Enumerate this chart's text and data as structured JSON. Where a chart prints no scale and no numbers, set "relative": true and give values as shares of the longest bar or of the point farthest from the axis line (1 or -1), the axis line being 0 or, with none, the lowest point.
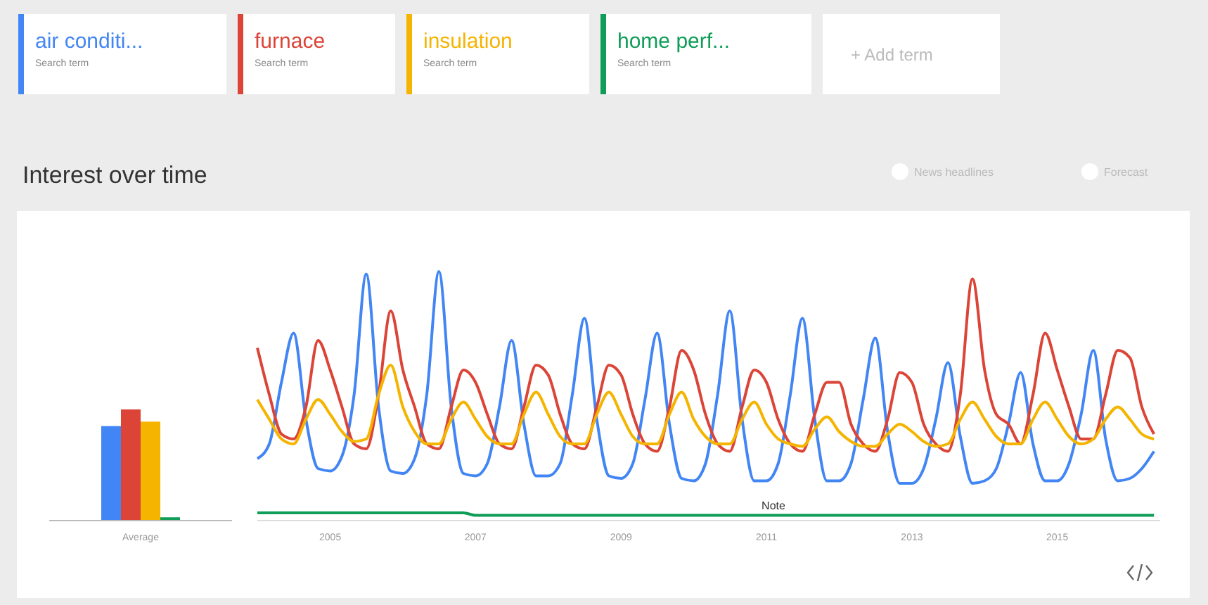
{
  "chart_data": [
    {
      "type": "bar",
      "title": "Interest over time",
      "categories": [
        "Average"
      ],
      "relative": true,
      "series": [
        {
          "color": "#4285f4",
          "values": [
            0.85
          ]
        },
        {
          "color": "#db4437",
          "values": [
            1
          ]
        },
        {
          "color": "#f4b400",
          "values": [
            0.89
          ]
        },
        {
          "color": "#0f9d58",
          "values": [
            0.03
          ]
        }
      ]
    },
    {
      "type": "line",
      "relative": true,
      "legend": "top",
      "x": [
        "2004-01",
        "2004-03",
        "2004-05",
        "2004-07",
        "2004-09",
        "2004-11",
        "2005-01",
        "2005-03",
        "2005-05",
        "2005-07",
        "2005-09",
        "2005-11",
        "2006-01",
        "2006-03",
        "2006-05",
        "2006-07",
        "2006-09",
        "2006-11",
        "2007-01",
        "2007-03",
        "2007-05",
        "2007-07",
        "2007-09",
        "2007-11",
        "2008-01",
        "2008-03",
        "2008-05",
        "2008-07",
        "2008-09",
        "2008-11",
        "2009-01",
        "2009-03",
        "2009-05",
        "2009-07",
        "2009-09",
        "2009-11",
        "2010-01",
        "2010-03",
        "2010-05",
        "2010-07",
        "2010-09",
        "2010-11",
        "2011-01",
        "2011-03",
        "2011-05",
        "2011-07",
        "2011-09",
        "2011-11",
        "2012-01",
        "2012-03",
        "2012-05",
        "2012-07",
        "2012-09",
        "2012-11",
        "2013-01",
        "2013-03",
        "2013-05",
        "2013-07",
        "2013-09",
        "2013-11",
        "2014-01",
        "2014-03",
        "2014-05",
        "2014-07",
        "2014-09",
        "2014-11",
        "2015-01",
        "2015-03",
        "2015-05",
        "2015-07",
        "2015-09",
        "2015-11",
        "2016-01",
        "2016-03",
        "2016-05"
      ],
      "xlim": [
        "2004-01",
        "2016-06"
      ],
      "xticks": [
        {
          "value": "2005-01",
          "label": "2005"
        },
        {
          "value": "2007-01",
          "label": "2007"
        },
        {
          "value": "2009-01",
          "label": "2009"
        },
        {
          "value": "2011-01",
          "label": "2011"
        },
        {
          "value": "2013-01",
          "label": "2013"
        },
        {
          "value": "2015-01",
          "label": "2015"
        }
      ],
      "annotations": [
        "Search term",
        "Search term",
        "Search term",
        "Search term",
        "+ Add term",
        "News headlines",
        "Forecast",
        "Note"
      ],
      "series": [
        {
          "name": "air conditi...",
          "color": "#4285f4",
          "values": [
            0.24,
            0.3,
            0.55,
            0.75,
            0.4,
            0.2,
            0.19,
            0.25,
            0.5,
            0.99,
            0.45,
            0.19,
            0.18,
            0.24,
            0.5,
            1.0,
            0.45,
            0.18,
            0.17,
            0.22,
            0.45,
            0.72,
            0.38,
            0.17,
            0.17,
            0.22,
            0.5,
            0.81,
            0.4,
            0.17,
            0.16,
            0.22,
            0.48,
            0.75,
            0.38,
            0.16,
            0.15,
            0.22,
            0.5,
            0.84,
            0.4,
            0.15,
            0.15,
            0.22,
            0.5,
            0.81,
            0.4,
            0.15,
            0.15,
            0.22,
            0.48,
            0.73,
            0.35,
            0.14,
            0.14,
            0.2,
            0.4,
            0.63,
            0.33,
            0.14,
            0.15,
            0.2,
            0.38,
            0.59,
            0.3,
            0.15,
            0.15,
            0.22,
            0.42,
            0.68,
            0.32,
            0.15,
            0.16,
            0.2,
            0.27
          ]
        },
        {
          "name": "furnace",
          "color": "#db4437",
          "values": [
            0.69,
            0.5,
            0.34,
            0.32,
            0.45,
            0.72,
            0.6,
            0.45,
            0.3,
            0.28,
            0.5,
            0.84,
            0.6,
            0.45,
            0.3,
            0.28,
            0.45,
            0.6,
            0.55,
            0.42,
            0.3,
            0.28,
            0.45,
            0.62,
            0.58,
            0.42,
            0.3,
            0.28,
            0.45,
            0.62,
            0.58,
            0.42,
            0.3,
            0.27,
            0.45,
            0.68,
            0.6,
            0.42,
            0.3,
            0.27,
            0.45,
            0.6,
            0.55,
            0.4,
            0.3,
            0.27,
            0.42,
            0.55,
            0.55,
            0.38,
            0.3,
            0.27,
            0.4,
            0.59,
            0.55,
            0.38,
            0.3,
            0.27,
            0.5,
            0.97,
            0.6,
            0.42,
            0.38,
            0.3,
            0.5,
            0.75,
            0.6,
            0.45,
            0.32,
            0.32,
            0.5,
            0.68,
            0.65,
            0.45,
            0.34
          ]
        },
        {
          "name": "insulation",
          "color": "#f4b400",
          "values": [
            0.48,
            0.4,
            0.32,
            0.3,
            0.4,
            0.48,
            0.42,
            0.35,
            0.31,
            0.32,
            0.5,
            0.62,
            0.45,
            0.35,
            0.3,
            0.3,
            0.4,
            0.47,
            0.4,
            0.33,
            0.3,
            0.3,
            0.42,
            0.51,
            0.42,
            0.33,
            0.3,
            0.3,
            0.42,
            0.51,
            0.42,
            0.33,
            0.3,
            0.3,
            0.42,
            0.51,
            0.4,
            0.33,
            0.3,
            0.3,
            0.4,
            0.47,
            0.38,
            0.32,
            0.3,
            0.29,
            0.36,
            0.41,
            0.35,
            0.31,
            0.29,
            0.29,
            0.34,
            0.38,
            0.35,
            0.31,
            0.29,
            0.3,
            0.4,
            0.47,
            0.4,
            0.33,
            0.3,
            0.3,
            0.4,
            0.47,
            0.4,
            0.33,
            0.3,
            0.32,
            0.4,
            0.45,
            0.4,
            0.34,
            0.32
          ]
        },
        {
          "name": "home perf...",
          "color": "#0f9d58",
          "values": [
            0.02,
            0.02,
            0.02,
            0.02,
            0.02,
            0.02,
            0.02,
            0.02,
            0.02,
            0.02,
            0.02,
            0.02,
            0.02,
            0.02,
            0.02,
            0.02,
            0.02,
            0.02,
            0.01,
            0.01,
            0.01,
            0.01,
            0.01,
            0.01,
            0.01,
            0.01,
            0.01,
            0.01,
            0.01,
            0.01,
            0.01,
            0.01,
            0.01,
            0.01,
            0.01,
            0.01,
            0.01,
            0.01,
            0.01,
            0.01,
            0.01,
            0.01,
            0.01,
            0.01,
            0.01,
            0.01,
            0.01,
            0.01,
            0.01,
            0.01,
            0.01,
            0.01,
            0.01,
            0.01,
            0.01,
            0.01,
            0.01,
            0.01,
            0.01,
            0.01,
            0.01,
            0.01,
            0.01,
            0.01,
            0.01,
            0.01,
            0.01,
            0.01,
            0.01,
            0.01,
            0.01,
            0.01,
            0.01,
            0.01,
            0.01
          ]
        }
      ]
    }
  ]
}
